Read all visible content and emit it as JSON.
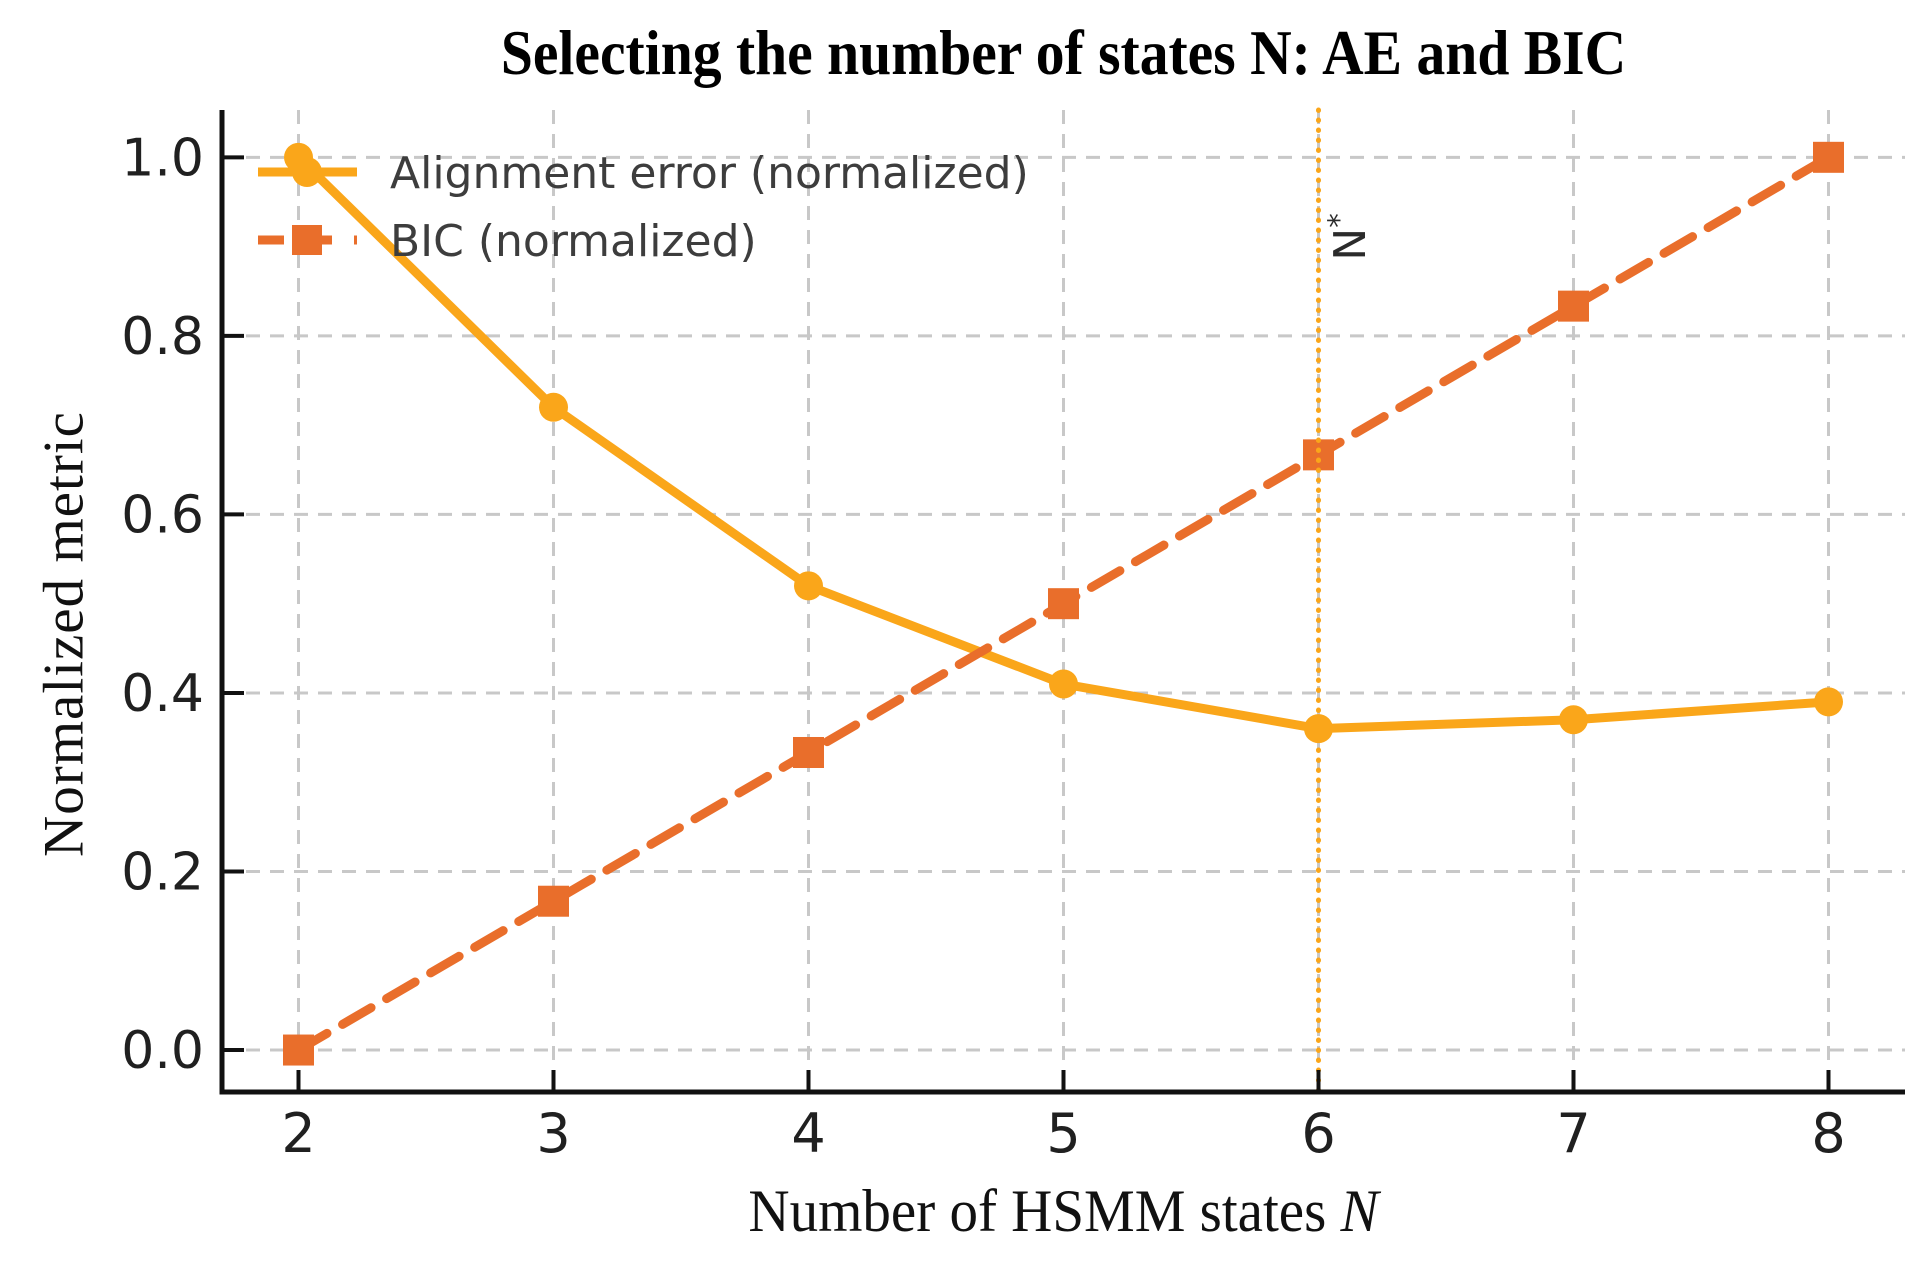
{
  "chart_data": {
    "type": "line",
    "title": "Selecting the number of states N: AE and BIC",
    "ylabel": "Normalized metric",
    "xlabel_plain": "Number of HSMM states ",
    "xlabel_italic": "N",
    "x": [
      2,
      3,
      4,
      5,
      6,
      7,
      8
    ],
    "xtick_labels": [
      "2",
      "3",
      "4",
      "5",
      "6",
      "7",
      "8"
    ],
    "ytick_labels": [
      "0.0",
      "0.2",
      "0.4",
      "0.6",
      "0.8",
      "1.0"
    ],
    "ytick_values": [
      0.0,
      0.2,
      0.4,
      0.6,
      0.8,
      1.0
    ],
    "xlim": [
      1.7,
      8.3
    ],
    "ylim": [
      -0.047,
      1.053
    ],
    "grid": true,
    "legend_position": "upper-left",
    "series": [
      {
        "name": "Alignment error (normalized)",
        "values": [
          1.0,
          0.72,
          0.52,
          0.41,
          0.36,
          0.37,
          0.39
        ],
        "color": "#FAA61A",
        "style": "solid",
        "marker": "circle"
      },
      {
        "name": "BIC (normalized)",
        "values": [
          0.0,
          0.1667,
          0.3333,
          0.5,
          0.6667,
          0.8333,
          1.0
        ],
        "color": "#E96E2B",
        "style": "dashed",
        "marker": "square"
      }
    ],
    "annotation": {
      "text": "N",
      "sup": "*",
      "x": 6,
      "line_color": "#FAA61A",
      "text_color": "#2b2b2b"
    },
    "colors": {
      "background": "#ffffff",
      "grid": "#c8c8c8",
      "spine": "#111111",
      "tick_label": "#202020",
      "legend_text": "#3d3d3d"
    }
  }
}
